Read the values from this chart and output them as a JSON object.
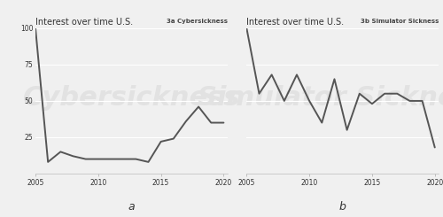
{
  "title": "Interest over time U.S.",
  "panel_a_label": "3a Cybersickness",
  "panel_b_label": "3b Simulator Sickness",
  "xlabel_a": "a",
  "xlabel_b": "b",
  "ylim": [
    0,
    100
  ],
  "yticks": [
    25,
    50,
    75,
    100
  ],
  "xtick_labels": [
    "2005",
    "2010",
    "2015",
    "2020"
  ],
  "cybersickness_x": [
    2005,
    2006,
    2007,
    2008,
    2009,
    2010,
    2011,
    2012,
    2013,
    2014,
    2015,
    2016,
    2017,
    2018,
    2019,
    2020
  ],
  "cybersickness_y": [
    100,
    8,
    15,
    12,
    10,
    10,
    10,
    10,
    10,
    8,
    22,
    24,
    36,
    46,
    35,
    35
  ],
  "simulator_x": [
    2005,
    2006,
    2007,
    2008,
    2009,
    2010,
    2011,
    2012,
    2013,
    2014,
    2015,
    2016,
    2017,
    2018,
    2019,
    2020
  ],
  "simulator_y": [
    100,
    55,
    68,
    50,
    68,
    50,
    35,
    65,
    30,
    55,
    48,
    55,
    55,
    50,
    50,
    18
  ],
  "line_color": "#555555",
  "line_width": 1.4,
  "bg_color": "#f0f0f0",
  "watermark_color": "#e2e2e2",
  "grid_color": "#ffffff",
  "font_color": "#333333"
}
